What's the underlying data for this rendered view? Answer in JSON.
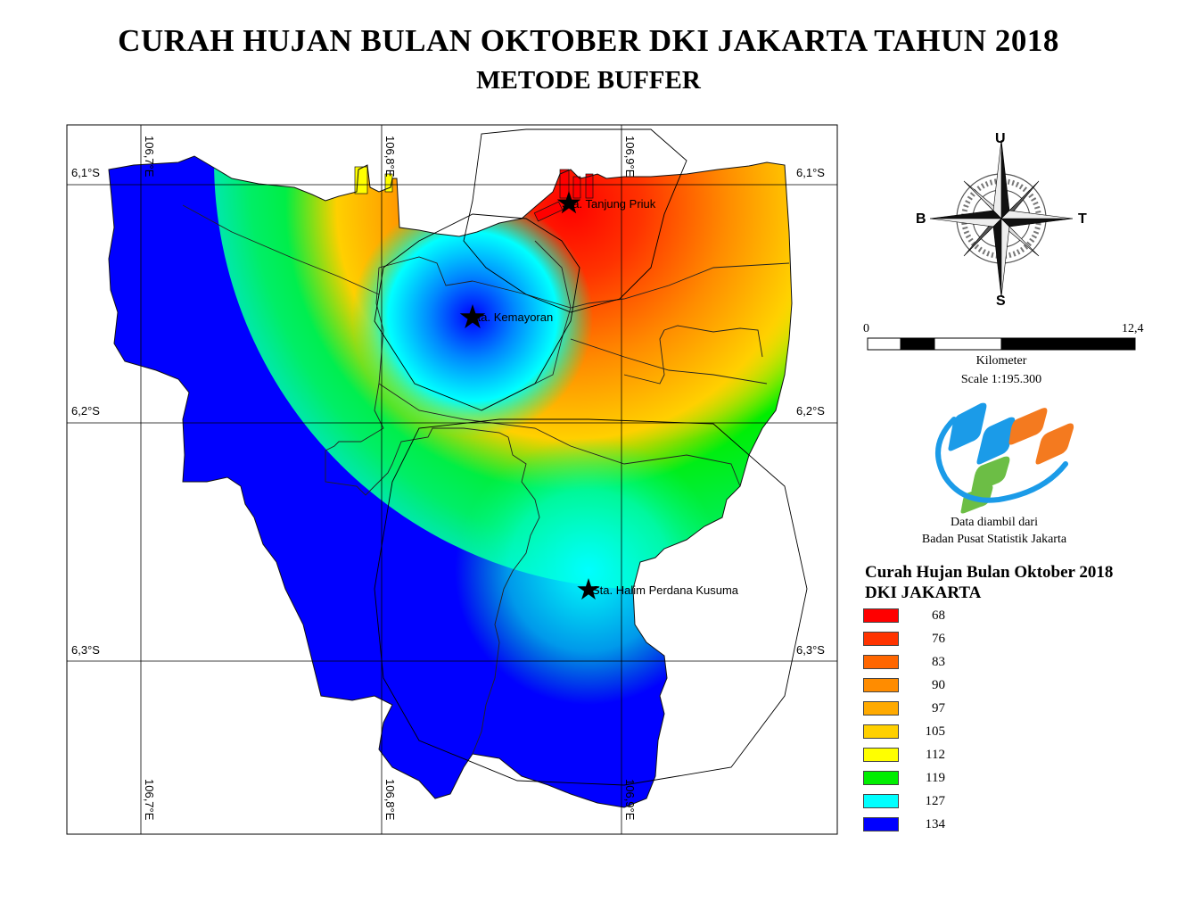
{
  "title": "CURAH HUJAN BULAN OKTOBER DKI JAKARTA TAHUN 2018",
  "subtitle": "METODE BUFFER",
  "grid": {
    "lon_top": [
      "106,7°E",
      "106,8°E",
      "106,9°E"
    ],
    "lon_bottom": [
      "106,7°E",
      "106,8°E",
      "106,9°E"
    ],
    "lat_left": [
      "6,1°S",
      "6,2°S",
      "6,3°S"
    ],
    "lat_right": [
      "6,1°S",
      "6,2°S",
      "6,3°S"
    ]
  },
  "stations": [
    {
      "label": "Sta. Tanjung Priuk"
    },
    {
      "label": "Sta. Kemayoran"
    },
    {
      "label": "Sta. Halim Perdana Kusuma"
    }
  ],
  "compass": {
    "north": "U",
    "south": "S",
    "east": "T",
    "west": "B"
  },
  "scale": {
    "start": "0",
    "end": "12,4",
    "unit": "Kilometer",
    "ratio": "Scale 1:195.300"
  },
  "credit": {
    "line1": "Data diambil dari",
    "line2": "Badan Pusat Statistik Jakarta"
  },
  "legend": {
    "title_line1": "Curah Hujan Bulan Oktober 2018",
    "title_line2": "DKI JAKARTA",
    "items": [
      {
        "value": "68",
        "color": "#ff0000"
      },
      {
        "value": "76",
        "color": "#ff3300"
      },
      {
        "value": "83",
        "color": "#ff6600"
      },
      {
        "value": "90",
        "color": "#ff8c00"
      },
      {
        "value": "97",
        "color": "#ffaa00"
      },
      {
        "value": "105",
        "color": "#ffd000"
      },
      {
        "value": "112",
        "color": "#ffff00"
      },
      {
        "value": "119",
        "color": "#00ee00"
      },
      {
        "value": "127",
        "color": "#00ffff"
      },
      {
        "value": "134",
        "color": "#0000ff"
      }
    ]
  }
}
